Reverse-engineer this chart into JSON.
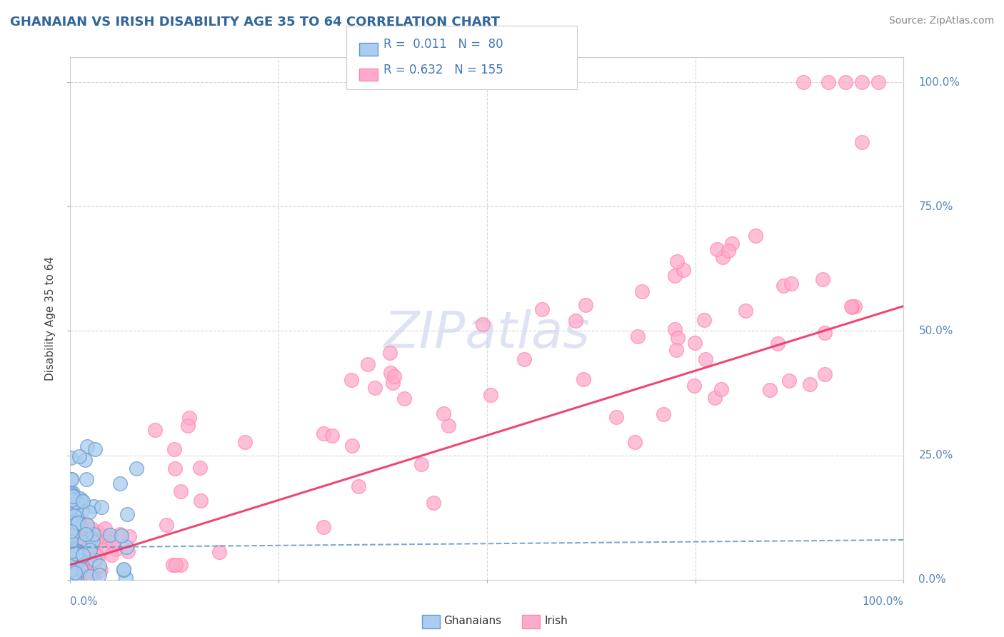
{
  "title": "GHANAIAN VS IRISH DISABILITY AGE 35 TO 64 CORRELATION CHART",
  "source": "Source: ZipAtlas.com",
  "ylabel": "Disability Age 35 to 64",
  "ghanaian_color_face": "#AACCEE",
  "ghanaian_color_edge": "#6699CC",
  "irish_color_face": "#FFAACC",
  "irish_color_edge": "#FF88AA",
  "line_ghanaian_color": "#6699CC",
  "line_irish_color": "#EE3366",
  "title_color": "#336699",
  "source_color": "#888888",
  "background_color": "#FFFFFF",
  "grid_color": "#CCCCCC",
  "axis_label_color": "#5588BB",
  "watermark_color": "#D0D8EE",
  "legend_text_color": "#4477BB",
  "legend_label_color": "#333333"
}
